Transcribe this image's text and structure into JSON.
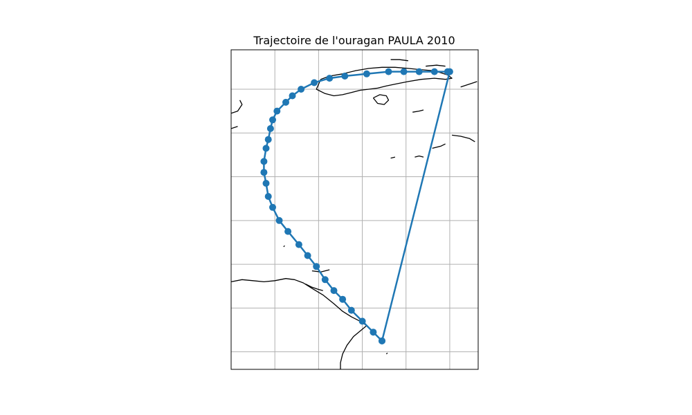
{
  "title": "Trajectoire de l'ouragan PAULA 2010",
  "colors": {
    "track": "#1f77b4",
    "grid": "#b0b0b0",
    "coast": "#000000",
    "frame": "#000000",
    "background": "#ffffff"
  },
  "map": {
    "projection": "PlateCarree",
    "extent_lon": [
      -90.5,
      -79.2
    ],
    "extent_lat": [
      11.8,
      26.4
    ],
    "gridlines_lon": [
      -88.5,
      -86.5,
      -84.5,
      -82.5,
      -80.5
    ],
    "gridlines_lat": [
      12.6,
      14.6,
      16.6,
      18.6,
      20.6,
      22.6,
      24.6
    ],
    "grid_labels_shown": false
  },
  "chart_data": {
    "type": "scatter",
    "title": "Trajectoire de l'ouragan PAULA 2010",
    "marker": "circle",
    "connected": true,
    "x_unit": "longitude",
    "y_unit": "latitude",
    "points": [
      {
        "lon": -83.6,
        "lat": 13.1
      },
      {
        "lon": -84.0,
        "lat": 13.5
      },
      {
        "lon": -84.5,
        "lat": 14.0
      },
      {
        "lon": -85.0,
        "lat": 14.5
      },
      {
        "lon": -85.4,
        "lat": 15.0
      },
      {
        "lon": -85.8,
        "lat": 15.4
      },
      {
        "lon": -86.2,
        "lat": 15.9
      },
      {
        "lon": -86.6,
        "lat": 16.5
      },
      {
        "lon": -87.0,
        "lat": 17.0
      },
      {
        "lon": -87.4,
        "lat": 17.5
      },
      {
        "lon": -87.9,
        "lat": 18.1
      },
      {
        "lon": -88.3,
        "lat": 18.6
      },
      {
        "lon": -88.6,
        "lat": 19.2
      },
      {
        "lon": -88.8,
        "lat": 19.7
      },
      {
        "lon": -88.9,
        "lat": 20.3
      },
      {
        "lon": -89.0,
        "lat": 20.8
      },
      {
        "lon": -89.0,
        "lat": 21.3
      },
      {
        "lon": -88.9,
        "lat": 21.9
      },
      {
        "lon": -88.8,
        "lat": 22.3
      },
      {
        "lon": -88.7,
        "lat": 22.8
      },
      {
        "lon": -88.6,
        "lat": 23.2
      },
      {
        "lon": -88.4,
        "lat": 23.6
      },
      {
        "lon": -88.0,
        "lat": 24.0
      },
      {
        "lon": -87.7,
        "lat": 24.3
      },
      {
        "lon": -87.3,
        "lat": 24.6
      },
      {
        "lon": -86.7,
        "lat": 24.9
      },
      {
        "lon": -86.0,
        "lat": 25.1
      },
      {
        "lon": -85.3,
        "lat": 25.2
      },
      {
        "lon": -84.3,
        "lat": 25.3
      },
      {
        "lon": -83.3,
        "lat": 25.4
      },
      {
        "lon": -82.6,
        "lat": 25.4
      },
      {
        "lon": -81.9,
        "lat": 25.4
      },
      {
        "lon": -81.2,
        "lat": 25.4
      },
      {
        "lon": -80.6,
        "lat": 25.4
      },
      {
        "lon": -80.5,
        "lat": 25.4
      },
      {
        "lon": -83.6,
        "lat": 13.1
      }
    ]
  },
  "coastlines": [
    {
      "name": "cuba",
      "points": [
        [
          -86.4,
          25.05
        ],
        [
          -86.0,
          25.2
        ],
        [
          -85.4,
          25.3
        ],
        [
          -84.8,
          25.45
        ],
        [
          -84.2,
          25.55
        ],
        [
          -83.6,
          25.6
        ],
        [
          -83.0,
          25.6
        ],
        [
          -82.4,
          25.55
        ],
        [
          -81.9,
          25.5
        ],
        [
          -81.3,
          25.45
        ],
        [
          -80.9,
          25.35
        ],
        [
          -80.6,
          25.25
        ],
        [
          -80.4,
          25.1
        ],
        [
          -80.7,
          25.05
        ],
        [
          -81.2,
          25.1
        ],
        [
          -81.8,
          25.05
        ],
        [
          -82.4,
          24.95
        ],
        [
          -82.9,
          24.85
        ],
        [
          -83.4,
          24.75
        ],
        [
          -83.8,
          24.65
        ],
        [
          -84.2,
          24.6
        ],
        [
          -84.6,
          24.55
        ],
        [
          -85.0,
          24.45
        ],
        [
          -85.4,
          24.35
        ],
        [
          -85.8,
          24.3
        ],
        [
          -86.2,
          24.4
        ],
        [
          -86.6,
          24.6
        ],
        [
          -86.4,
          25.05
        ]
      ]
    },
    {
      "name": "isla-juventud",
      "points": [
        [
          -84.0,
          24.2
        ],
        [
          -83.7,
          24.35
        ],
        [
          -83.4,
          24.3
        ],
        [
          -83.3,
          24.1
        ],
        [
          -83.5,
          23.9
        ],
        [
          -83.8,
          23.95
        ],
        [
          -84.0,
          24.2
        ]
      ]
    },
    {
      "name": "keys-north",
      "points": [
        [
          -83.2,
          25.95
        ],
        [
          -82.8,
          25.95
        ],
        [
          -82.4,
          25.9
        ]
      ]
    },
    {
      "name": "keys-cays-1",
      "points": [
        [
          -81.6,
          25.65
        ],
        [
          -81.1,
          25.7
        ],
        [
          -80.7,
          25.65
        ]
      ]
    },
    {
      "name": "hispaniola",
      "points": [
        [
          -80.0,
          24.7
        ],
        [
          -79.7,
          24.8
        ],
        [
          -79.4,
          24.9
        ],
        [
          -79.25,
          24.95
        ]
      ]
    },
    {
      "name": "jamaica",
      "points": [
        [
          -80.4,
          22.5
        ],
        [
          -80.0,
          22.45
        ],
        [
          -79.6,
          22.35
        ],
        [
          -79.35,
          22.2
        ]
      ]
    },
    {
      "name": "jamaica-2",
      "points": [
        [
          -82.2,
          23.55
        ],
        [
          -81.9,
          23.6
        ],
        [
          -81.7,
          23.65
        ]
      ]
    },
    {
      "name": "cayman",
      "points": [
        [
          -82.1,
          21.5
        ],
        [
          -81.9,
          21.55
        ],
        [
          -81.7,
          21.5
        ]
      ]
    },
    {
      "name": "swan-small",
      "points": [
        [
          -83.2,
          21.45
        ],
        [
          -83.0,
          21.5
        ]
      ]
    },
    {
      "name": "mosquitia",
      "points": [
        [
          -81.3,
          21.9
        ],
        [
          -80.9,
          22.0
        ],
        [
          -80.7,
          22.1
        ]
      ]
    },
    {
      "name": "yucatan-top",
      "points": [
        [
          -90.5,
          23.5
        ],
        [
          -90.2,
          23.6
        ],
        [
          -90.0,
          23.9
        ],
        [
          -90.1,
          24.1
        ]
      ]
    },
    {
      "name": "yucatan-side",
      "points": [
        [
          -90.5,
          22.8
        ],
        [
          -90.2,
          22.9
        ]
      ]
    },
    {
      "name": "honduras",
      "points": [
        [
          -90.5,
          15.8
        ],
        [
          -90.0,
          15.9
        ],
        [
          -89.5,
          15.85
        ],
        [
          -89.0,
          15.8
        ],
        [
          -88.5,
          15.85
        ],
        [
          -88.0,
          15.95
        ],
        [
          -87.6,
          15.9
        ],
        [
          -87.2,
          15.75
        ],
        [
          -86.8,
          15.5
        ],
        [
          -86.3,
          15.2
        ],
        [
          -85.8,
          14.8
        ],
        [
          -85.4,
          14.45
        ],
        [
          -85.0,
          14.2
        ],
        [
          -84.6,
          14.0
        ],
        [
          -84.3,
          13.8
        ],
        [
          -84.9,
          13.3
        ],
        [
          -85.2,
          12.9
        ],
        [
          -85.4,
          12.5
        ],
        [
          -85.5,
          12.1
        ],
        [
          -85.5,
          11.8
        ]
      ]
    },
    {
      "name": "honduras-bay-islands",
      "points": [
        [
          -86.8,
          16.3
        ],
        [
          -86.4,
          16.25
        ],
        [
          -86.0,
          16.35
        ]
      ]
    },
    {
      "name": "roatan",
      "points": [
        [
          -87.1,
          15.7
        ],
        [
          -86.8,
          15.55
        ],
        [
          -86.5,
          15.45
        ],
        [
          -86.3,
          15.4
        ]
      ]
    },
    {
      "name": "belize-cays",
      "points": [
        [
          -88.1,
          17.4
        ],
        [
          -88.05,
          17.45
        ]
      ]
    },
    {
      "name": "corn-island",
      "points": [
        [
          -83.4,
          12.5
        ],
        [
          -83.35,
          12.55
        ]
      ]
    }
  ]
}
